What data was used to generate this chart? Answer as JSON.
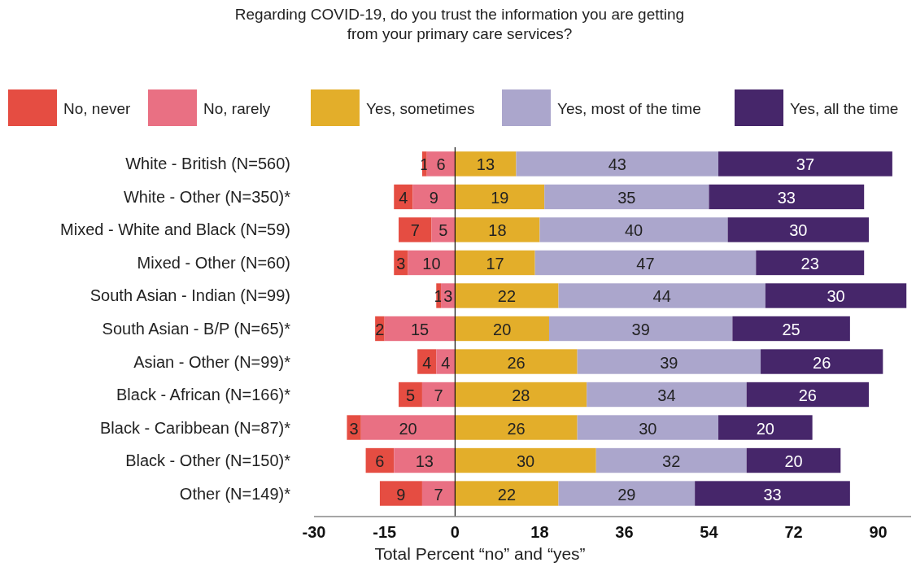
{
  "chart_data": {
    "type": "bar",
    "orientation": "horizontal",
    "title": "Regarding COVID-19, do you trust the information you are getting from your primary care services?",
    "xlabel": "Total Percent “no” and “yes”",
    "categories": [
      "White - British (N=560)",
      "White - Other (N=350)*",
      "Mixed - White and Black (N=59)",
      "Mixed - Other (N=60)",
      "South Asian - Indian (N=99)",
      "South Asian - B/P (N=65)*",
      "Asian - Other (N=99)*",
      "Black - African (N=166)*",
      "Black - Caribbean (N=87)*",
      "Black - Other (N=150)*",
      "Other (N=149)*"
    ],
    "series": [
      {
        "name": "No, never",
        "color": "#e54d42",
        "values": [
          1,
          4,
          7,
          3,
          1,
          2,
          4,
          5,
          3,
          6,
          9
        ],
        "base": [
          -7,
          -13,
          -12,
          -13,
          -4,
          -17,
          -8,
          -12,
          -23,
          -19,
          -16
        ]
      },
      {
        "name": "No, rarely",
        "color": "#e97083",
        "values": [
          6,
          9,
          5,
          10,
          3,
          15,
          4,
          7,
          20,
          13,
          7
        ],
        "base": [
          -6,
          -9,
          -5,
          -10,
          -3,
          -15,
          -4,
          -7,
          -20,
          -13,
          -7
        ]
      },
      {
        "name": "Yes, sometimes",
        "color": "#e3ae2a",
        "values": [
          13,
          19,
          18,
          17,
          22,
          20,
          26,
          28,
          26,
          30,
          22
        ],
        "base": [
          0,
          0,
          0,
          0,
          0,
          0,
          0,
          0,
          0,
          0,
          0
        ]
      },
      {
        "name": "Yes, most of the time",
        "color": "#aba6cc",
        "values": [
          43,
          35,
          40,
          47,
          44,
          39,
          39,
          34,
          30,
          32,
          29
        ],
        "base": [
          13,
          19,
          18,
          17,
          22,
          20,
          26,
          28,
          26,
          30,
          22
        ]
      },
      {
        "name": "Yes, all the time",
        "color": "#46266a",
        "values": [
          37,
          33,
          30,
          23,
          30,
          25,
          26,
          26,
          20,
          20,
          33
        ],
        "base": [
          56,
          54,
          58,
          64,
          66,
          59,
          65,
          62,
          56,
          62,
          51
        ]
      }
    ],
    "xlim": [
      -30,
      97
    ],
    "xticks": [
      -30,
      -15,
      0,
      18,
      36,
      54,
      72,
      90
    ],
    "data_labels": true,
    "legend": "top"
  }
}
